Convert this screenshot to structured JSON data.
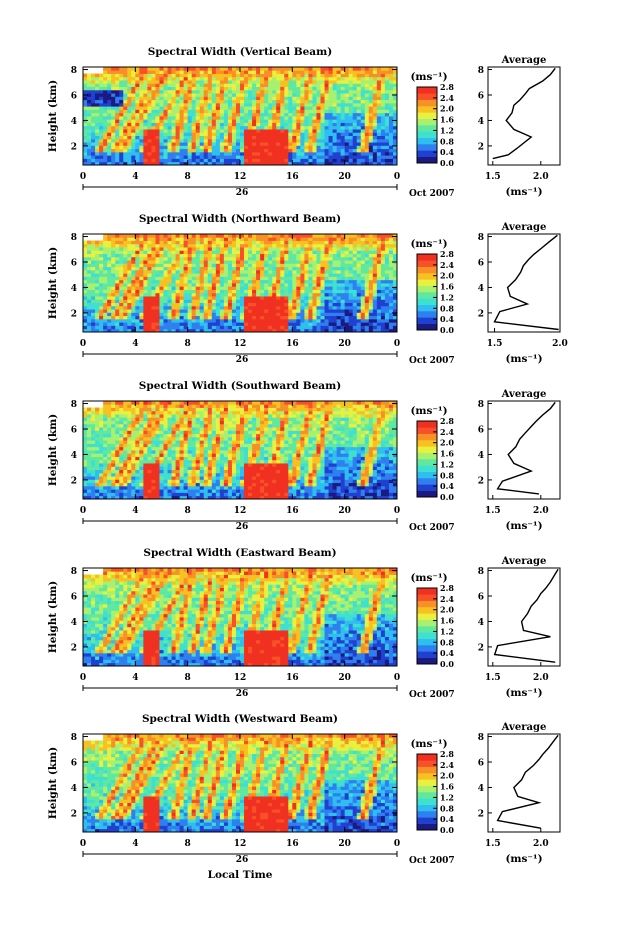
{
  "figure": {
    "xlabel": "Local Time",
    "date_label": "Oct 2007",
    "day_label": "26",
    "colorbar_unit": "(ms⁻¹)",
    "average_title": "Average",
    "average_xlabel": "(ms⁻¹)"
  },
  "colormap": [
    "#1a1a80",
    "#2040d0",
    "#2f7ff0",
    "#2fbef0",
    "#40e0d0",
    "#60e8a0",
    "#a8f070",
    "#e8f040",
    "#f8c020",
    "#f89028",
    "#f85028",
    "#f03020"
  ],
  "chart_data": [
    {
      "type": "heatmap",
      "title": "Spectral Width (Vertical Beam)",
      "ylabel": "Height (km)",
      "x_ticks": [
        "0",
        "4",
        "8",
        "12",
        "16",
        "20",
        "0"
      ],
      "y_ticks": [
        "2",
        "4",
        "6",
        "8"
      ],
      "xlim": [
        0,
        24
      ],
      "ylim": [
        0.5,
        8.2
      ],
      "colorbar_ticks": [
        "0.0",
        "0.4",
        "0.8",
        "1.2",
        "1.6",
        "2.0",
        "2.4",
        "2.8"
      ],
      "profile": {
        "type": "line",
        "title": "Average",
        "xlim": [
          1.45,
          2.2
        ],
        "ylim": [
          0.5,
          8.2
        ],
        "x_ticks": [
          "1.5",
          "2.0"
        ],
        "y_ticks": [
          "2",
          "4",
          "6",
          "8"
        ],
        "x": [
          1.5,
          1.66,
          1.75,
          1.9,
          1.72,
          1.64,
          1.7,
          1.72,
          1.78,
          1.84,
          1.88,
          2.02,
          2.1,
          2.15
        ],
        "y": [
          1.0,
          1.3,
          1.8,
          2.7,
          3.3,
          4.0,
          4.6,
          5.2,
          5.6,
          6.1,
          6.5,
          7.1,
          7.6,
          8.1
        ]
      }
    },
    {
      "type": "heatmap",
      "title": "Spectral Width (Northward Beam)",
      "ylabel": "Height (km)",
      "x_ticks": [
        "0",
        "4",
        "8",
        "12",
        "16",
        "20",
        "0"
      ],
      "y_ticks": [
        "2",
        "4",
        "6",
        "8"
      ],
      "xlim": [
        0,
        24
      ],
      "ylim": [
        0.5,
        8.2
      ],
      "colorbar_ticks": [
        "0.0",
        "0.4",
        "0.8",
        "1.2",
        "1.6",
        "2.0",
        "2.4",
        "2.8"
      ],
      "profile": {
        "type": "line",
        "title": "Average",
        "xlim": [
          1.45,
          2.0
        ],
        "ylim": [
          0.5,
          8.2
        ],
        "x": [
          1.99,
          1.5,
          1.54,
          1.75,
          1.62,
          1.6,
          1.66,
          1.7,
          1.72,
          1.76,
          1.8,
          1.86,
          1.92,
          1.98
        ],
        "x_ticks": [
          "1.5",
          "2.0"
        ],
        "y_ticks": [
          "2",
          "4",
          "6",
          "8"
        ],
        "y": [
          0.7,
          1.3,
          2.1,
          2.7,
          3.3,
          4.0,
          4.6,
          5.2,
          5.7,
          6.2,
          6.6,
          7.1,
          7.6,
          8.1
        ]
      }
    },
    {
      "type": "heatmap",
      "title": "Spectral Width (Southward Beam)",
      "ylabel": "Height (km)",
      "x_ticks": [
        "0",
        "4",
        "8",
        "12",
        "16",
        "20",
        "0"
      ],
      "y_ticks": [
        "2",
        "4",
        "6",
        "8"
      ],
      "xlim": [
        0,
        24
      ],
      "ylim": [
        0.5,
        8.2
      ],
      "colorbar_ticks": [
        "0.0",
        "0.4",
        "0.8",
        "1.2",
        "1.6",
        "2.0",
        "2.4",
        "2.8"
      ],
      "profile": {
        "type": "line",
        "title": "Average",
        "xlim": [
          1.45,
          2.2
        ],
        "ylim": [
          0.5,
          8.2
        ],
        "x_ticks": [
          "1.5",
          "2.0"
        ],
        "y_ticks": [
          "2",
          "4",
          "6",
          "8"
        ],
        "x": [
          1.98,
          1.55,
          1.6,
          1.9,
          1.72,
          1.66,
          1.74,
          1.78,
          1.84,
          1.9,
          1.95,
          2.02,
          2.1,
          2.15
        ],
        "y": [
          0.9,
          1.3,
          1.9,
          2.7,
          3.3,
          4.0,
          4.6,
          5.2,
          5.7,
          6.2,
          6.6,
          7.1,
          7.6,
          8.1
        ]
      }
    },
    {
      "type": "heatmap",
      "title": "Spectral Width (Eastward Beam)",
      "ylabel": "Height (km)",
      "x_ticks": [
        "0",
        "4",
        "8",
        "12",
        "16",
        "20",
        "0"
      ],
      "y_ticks": [
        "2",
        "4",
        "6",
        "8"
      ],
      "xlim": [
        0,
        24
      ],
      "ylim": [
        0.5,
        8.2
      ],
      "colorbar_ticks": [
        "0.0",
        "0.4",
        "0.8",
        "1.2",
        "1.6",
        "2.0",
        "2.4",
        "2.8"
      ],
      "profile": {
        "type": "line",
        "title": "Average",
        "xlim": [
          1.45,
          2.2
        ],
        "ylim": [
          0.5,
          8.2
        ],
        "x_ticks": [
          "1.5",
          "2.0"
        ],
        "y_ticks": [
          "2",
          "4",
          "6",
          "8"
        ],
        "x": [
          2.15,
          1.52,
          1.55,
          2.1,
          1.82,
          1.8,
          1.86,
          1.9,
          1.96,
          2.0,
          2.05,
          2.1,
          2.14,
          2.18
        ],
        "y": [
          0.8,
          1.4,
          2.1,
          2.8,
          3.3,
          4.0,
          4.6,
          5.2,
          5.7,
          6.2,
          6.6,
          7.1,
          7.6,
          8.1
        ]
      }
    },
    {
      "type": "heatmap",
      "title": "Spectral Width (Westward Beam)",
      "ylabel": "Height (km)",
      "x_ticks": [
        "0",
        "4",
        "8",
        "12",
        "16",
        "20",
        "0"
      ],
      "y_ticks": [
        "2",
        "4",
        "6",
        "8"
      ],
      "xlim": [
        0,
        24
      ],
      "ylim": [
        0.5,
        8.2
      ],
      "colorbar_ticks": [
        "0.0",
        "0.4",
        "0.8",
        "1.2",
        "1.6",
        "2.0",
        "2.4",
        "2.8"
      ],
      "profile": {
        "type": "line",
        "title": "Average",
        "xlim": [
          1.45,
          2.2
        ],
        "ylim": [
          0.5,
          8.2
        ],
        "x_ticks": [
          "1.5",
          "2.0"
        ],
        "y_ticks": [
          "2",
          "4",
          "6",
          "8"
        ],
        "x": [
          2.0,
          1.55,
          1.6,
          1.98,
          1.76,
          1.72,
          1.8,
          1.84,
          1.92,
          1.98,
          2.02,
          2.08,
          2.13,
          2.18
        ],
        "y": [
          0.8,
          1.4,
          2.1,
          2.8,
          3.3,
          4.0,
          4.6,
          5.2,
          5.7,
          6.2,
          6.6,
          7.1,
          7.6,
          8.1
        ]
      }
    }
  ]
}
